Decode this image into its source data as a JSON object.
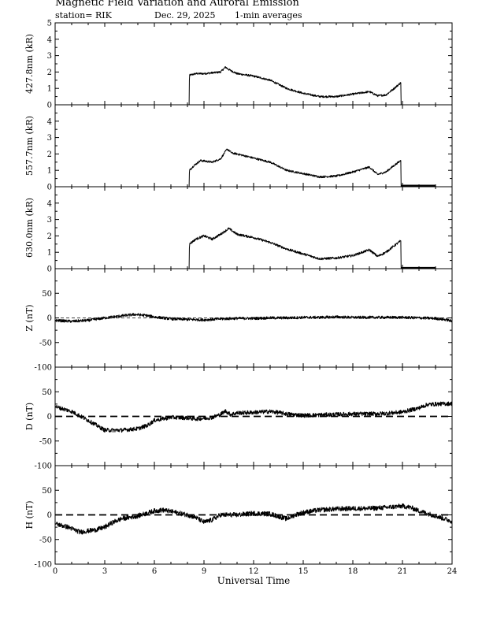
{
  "header": {
    "title": "Magnetic Field Variation and Auroral Emission",
    "station": "station= RIK",
    "date": "Dec. 29,  2025",
    "averages": "1-min averages"
  },
  "colors": {
    "line": "#000000",
    "background": "#ffffff"
  },
  "chart_data": {
    "type": "line",
    "xlabel": "Universal Time",
    "xlim": [
      0,
      24
    ],
    "xticks": [
      0,
      3,
      6,
      9,
      12,
      15,
      18,
      21,
      24
    ],
    "panels": [
      {
        "id": "p4278",
        "ylabel": "427.8nm (kR)",
        "ylim": [
          0,
          5
        ],
        "yticks": [
          0,
          1,
          2,
          3,
          4,
          5
        ],
        "ytick_labels": [
          "0",
          "1",
          "2",
          "3",
          "4",
          "5"
        ],
        "zero_line": "none",
        "series": [
          {
            "name": "427.8nm",
            "start": 8.1,
            "end": 20.9,
            "noise": 0.12,
            "points": [
              [
                8.1,
                0
              ],
              [
                8.12,
                1.8
              ],
              [
                8.5,
                1.9
              ],
              [
                9,
                1.9
              ],
              [
                9.5,
                1.95
              ],
              [
                10,
                2.0
              ],
              [
                10.3,
                2.3
              ],
              [
                10.5,
                2.15
              ],
              [
                11,
                1.9
              ],
              [
                12,
                1.75
              ],
              [
                13,
                1.5
              ],
              [
                14,
                1.0
              ],
              [
                15,
                0.7
              ],
              [
                16,
                0.5
              ],
              [
                17,
                0.5
              ],
              [
                18,
                0.65
              ],
              [
                19,
                0.8
              ],
              [
                19.5,
                0.55
              ],
              [
                20,
                0.6
              ],
              [
                20.5,
                1.0
              ],
              [
                20.9,
                1.35
              ],
              [
                20.92,
                0
              ]
            ]
          }
        ]
      },
      {
        "id": "p5577",
        "ylabel": "557.7nm (kR)",
        "ylim": [
          0,
          5
        ],
        "yticks": [
          0,
          1,
          2,
          3,
          4
        ],
        "ytick_labels": [
          "0",
          "1",
          "2",
          "3",
          "4"
        ],
        "zero_line": "none",
        "series": [
          {
            "name": "557.7nm",
            "start": 8.1,
            "end": 20.9,
            "noise": 0.12,
            "points": [
              [
                8.1,
                0
              ],
              [
                8.12,
                1.0
              ],
              [
                8.4,
                1.3
              ],
              [
                8.8,
                1.6
              ],
              [
                9.5,
                1.5
              ],
              [
                10,
                1.7
              ],
              [
                10.4,
                2.3
              ],
              [
                10.7,
                2.05
              ],
              [
                11,
                2.0
              ],
              [
                12,
                1.75
              ],
              [
                13,
                1.5
              ],
              [
                14,
                1.0
              ],
              [
                15,
                0.8
              ],
              [
                16,
                0.6
              ],
              [
                17,
                0.65
              ],
              [
                18,
                0.9
              ],
              [
                19,
                1.2
              ],
              [
                19.5,
                0.75
              ],
              [
                20,
                0.9
              ],
              [
                20.5,
                1.3
              ],
              [
                20.9,
                1.6
              ],
              [
                20.92,
                0
              ]
            ]
          },
          {
            "name": "557.7nm-tail",
            "start": 20.92,
            "end": 23.0,
            "noise": 0,
            "points": [
              [
                20.92,
                0.06
              ],
              [
                23.0,
                0.06
              ]
            ]
          }
        ]
      },
      {
        "id": "p6300",
        "ylabel": "630.0nm (kR)",
        "ylim": [
          0,
          5
        ],
        "yticks": [
          0,
          1,
          2,
          3,
          4
        ],
        "ytick_labels": [
          "0",
          "1",
          "2",
          "3",
          "4"
        ],
        "zero_line": "none",
        "series": [
          {
            "name": "630.0nm",
            "start": 8.1,
            "end": 20.9,
            "noise": 0.14,
            "points": [
              [
                8.1,
                0
              ],
              [
                8.12,
                1.5
              ],
              [
                8.5,
                1.8
              ],
              [
                9,
                2.0
              ],
              [
                9.5,
                1.8
              ],
              [
                10,
                2.1
              ],
              [
                10.5,
                2.45
              ],
              [
                11,
                2.1
              ],
              [
                12,
                1.9
              ],
              [
                13,
                1.6
              ],
              [
                14,
                1.2
              ],
              [
                15,
                0.9
              ],
              [
                16,
                0.6
              ],
              [
                17,
                0.65
              ],
              [
                18,
                0.8
              ],
              [
                19,
                1.15
              ],
              [
                19.5,
                0.75
              ],
              [
                20,
                1.0
              ],
              [
                20.5,
                1.4
              ],
              [
                20.9,
                1.7
              ],
              [
                20.92,
                0
              ]
            ]
          },
          {
            "name": "630.0nm-tail",
            "start": 20.92,
            "end": 23.0,
            "noise": 0,
            "points": [
              [
                20.92,
                0.04
              ],
              [
                23.0,
                0.04
              ]
            ]
          }
        ]
      },
      {
        "id": "pZ",
        "ylabel": "Z (nT)",
        "ylim": [
          -100,
          100
        ],
        "yticks": [
          -100,
          -50,
          0,
          50
        ],
        "ytick_labels": [
          "-100",
          "-50",
          "0",
          "50"
        ],
        "zero_line": "fine",
        "series": [
          {
            "name": "Z",
            "start": 0,
            "end": 24,
            "noise": 0.4,
            "points": [
              [
                0,
                -5
              ],
              [
                1,
                -7
              ],
              [
                2,
                -5
              ],
              [
                3,
                0
              ],
              [
                4,
                4
              ],
              [
                4.8,
                7
              ],
              [
                5.5,
                5
              ],
              [
                6,
                2
              ],
              [
                7,
                -2
              ],
              [
                8,
                -3
              ],
              [
                9,
                -4
              ],
              [
                10,
                -2
              ],
              [
                11,
                -1
              ],
              [
                12,
                -1
              ],
              [
                13,
                0
              ],
              [
                14,
                0
              ],
              [
                15,
                1
              ],
              [
                16,
                1
              ],
              [
                17,
                2
              ],
              [
                18,
                1
              ],
              [
                19,
                1
              ],
              [
                20,
                1
              ],
              [
                21,
                1
              ],
              [
                22,
                0
              ],
              [
                23,
                -1
              ],
              [
                23.7,
                -4
              ],
              [
                24,
                -7
              ]
            ]
          }
        ]
      },
      {
        "id": "pD",
        "ylabel": "D (nT)",
        "ylim": [
          -100,
          100
        ],
        "yticks": [
          -100,
          -50,
          0,
          50
        ],
        "ytick_labels": [
          "-100",
          "-50",
          "0",
          "50"
        ],
        "zero_line": "dashed",
        "series": [
          {
            "name": "D",
            "start": 0,
            "end": 24,
            "noise": 0.6,
            "points": [
              [
                0,
                20
              ],
              [
                1,
                10
              ],
              [
                2,
                -8
              ],
              [
                3,
                -28
              ],
              [
                4,
                -28
              ],
              [
                5,
                -25
              ],
              [
                5.6,
                -18
              ],
              [
                6,
                -8
              ],
              [
                7,
                -2
              ],
              [
                8,
                -3
              ],
              [
                8.5,
                -5
              ],
              [
                9,
                -4
              ],
              [
                9.5,
                -2
              ],
              [
                10,
                4
              ],
              [
                10.3,
                11
              ],
              [
                10.6,
                4
              ],
              [
                11,
                7
              ],
              [
                12,
                8
              ],
              [
                13,
                10
              ],
              [
                13.5,
                8
              ],
              [
                14,
                5
              ],
              [
                15,
                2
              ],
              [
                16,
                3
              ],
              [
                17,
                4
              ],
              [
                18,
                5
              ],
              [
                19,
                5
              ],
              [
                20,
                6
              ],
              [
                21,
                9
              ],
              [
                22,
                17
              ],
              [
                22.5,
                24
              ],
              [
                23,
                25
              ],
              [
                24,
                26
              ]
            ]
          }
        ]
      },
      {
        "id": "pH",
        "ylabel": "H (nT)",
        "ylim": [
          -100,
          100
        ],
        "yticks": [
          -100,
          -50,
          0,
          50
        ],
        "ytick_labels": [
          "-100",
          "-50",
          "0",
          "50"
        ],
        "zero_line": "dashed",
        "series": [
          {
            "name": "H",
            "start": 0,
            "end": 24,
            "noise": 0.7,
            "points": [
              [
                0,
                -18
              ],
              [
                0.8,
                -25
              ],
              [
                1.5,
                -35
              ],
              [
                2.5,
                -30
              ],
              [
                3,
                -25
              ],
              [
                3.5,
                -15
              ],
              [
                4,
                -8
              ],
              [
                5,
                -2
              ],
              [
                6,
                8
              ],
              [
                6.5,
                10
              ],
              [
                7,
                7
              ],
              [
                8,
                0
              ],
              [
                8.5,
                -5
              ],
              [
                9,
                -15
              ],
              [
                9.5,
                -10
              ],
              [
                10,
                0
              ],
              [
                11,
                0
              ],
              [
                12,
                3
              ],
              [
                13,
                2
              ],
              [
                13.5,
                -3
              ],
              [
                14,
                -8
              ],
              [
                14.5,
                0
              ],
              [
                15,
                5
              ],
              [
                16,
                10
              ],
              [
                17,
                12
              ],
              [
                18,
                13
              ],
              [
                19,
                13
              ],
              [
                20,
                15
              ],
              [
                21,
                18
              ],
              [
                21.5,
                15
              ],
              [
                22,
                8
              ],
              [
                23,
                -2
              ],
              [
                24,
                -13
              ]
            ]
          }
        ]
      }
    ]
  }
}
